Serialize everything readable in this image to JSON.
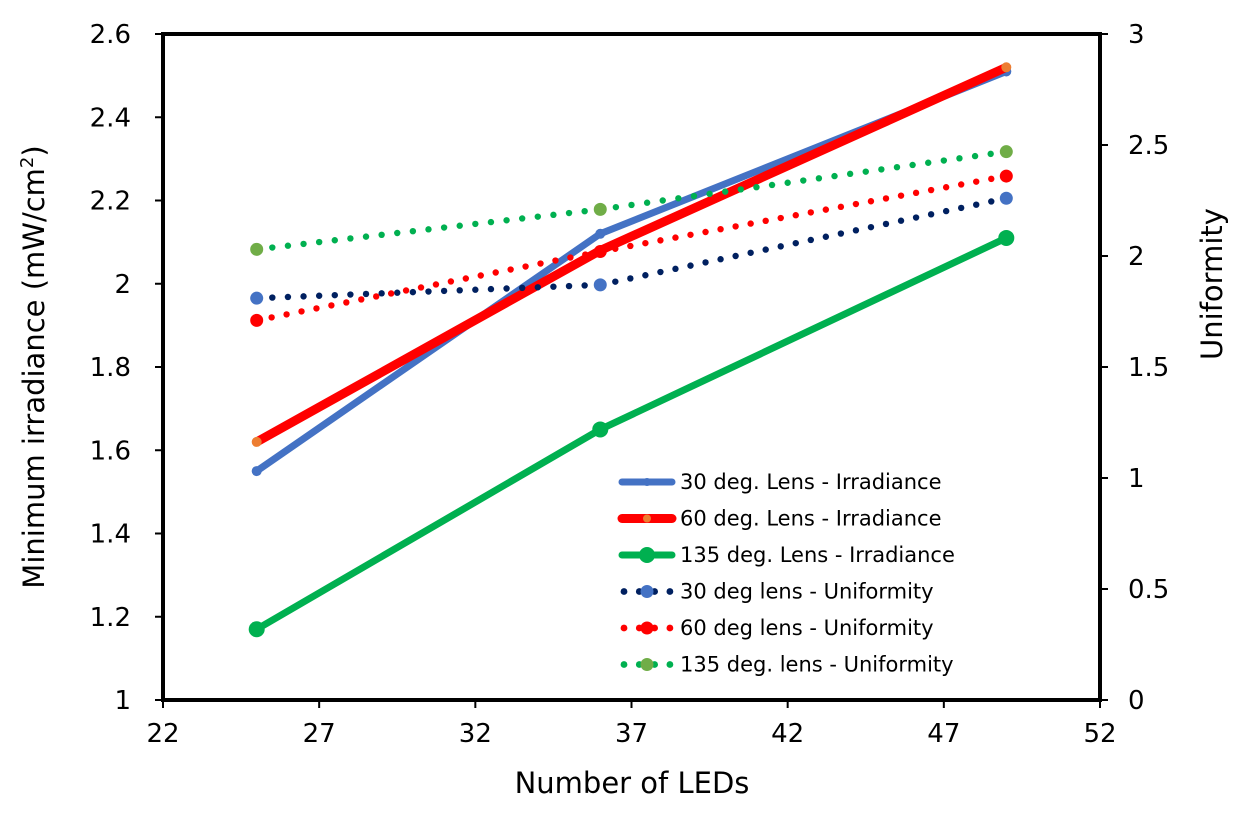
{
  "chart_data": {
    "type": "line",
    "xlabel": "Number of LEDs",
    "ylabel": "Minimum irradiance (mW/cm²)",
    "ylabel_parts": {
      "prefix": "Minimum irradiance (mW/cm",
      "superscript": "2",
      "suffix": ")"
    },
    "y2label": "Uniformity",
    "xlim": [
      22,
      52
    ],
    "ylim": [
      1,
      2.6
    ],
    "y2lim": [
      0,
      3
    ],
    "x_ticks": [
      "22",
      "27",
      "32",
      "37",
      "42",
      "47",
      "52"
    ],
    "y_ticks": [
      "1",
      "1.2",
      "1.4",
      "1.6",
      "1.8",
      "2",
      "2.2",
      "2.4",
      "2.6"
    ],
    "y2_ticks": [
      "0",
      "0.5",
      "1",
      "1.5",
      "2",
      "2.5",
      "3"
    ],
    "x_tick_values": [
      22,
      27,
      32,
      37,
      42,
      47,
      52
    ],
    "y_tick_values": [
      1,
      1.2,
      1.4,
      1.6,
      1.8,
      2,
      2.2,
      2.4,
      2.6
    ],
    "y2_tick_values": [
      0,
      0.5,
      1,
      1.5,
      2,
      2.5,
      3
    ],
    "legend_position": "bottom-right",
    "series": [
      {
        "name": "30 deg. Lens - Irradiance",
        "axis": "left",
        "style": "solid",
        "color": "#4472C4",
        "marker_color": "#4472C4",
        "x": [
          25,
          36,
          49
        ],
        "values": [
          1.55,
          2.12,
          2.51
        ]
      },
      {
        "name": "60 deg. Lens - Irradiance",
        "axis": "left",
        "style": "solid",
        "color": "#FF0000",
        "marker_color": "#ED7D31",
        "x": [
          25,
          36,
          49
        ],
        "values": [
          1.62,
          2.08,
          2.52
        ]
      },
      {
        "name": "135 deg. Lens - Irradiance",
        "axis": "left",
        "style": "solid",
        "color": "#00B050",
        "marker_color": "#00B050",
        "x": [
          25,
          36,
          49
        ],
        "values": [
          1.17,
          1.65,
          2.11
        ]
      },
      {
        "name": "30 deg lens - Uniformity",
        "axis": "right",
        "style": "dotted",
        "color": "#002060",
        "marker_color": "#4472C4",
        "x": [
          25,
          36,
          49
        ],
        "values": [
          1.81,
          1.87,
          2.26
        ]
      },
      {
        "name": "60 deg lens - Uniformity",
        "axis": "right",
        "style": "dotted",
        "color": "#FF0000",
        "marker_color": "#FF0000",
        "x": [
          25,
          36,
          49
        ],
        "values": [
          1.71,
          2.02,
          2.36
        ]
      },
      {
        "name": "135 deg. lens - Uniformity",
        "axis": "right",
        "style": "dotted",
        "color": "#00B050",
        "marker_color": "#70AD47",
        "x": [
          25,
          36,
          49
        ],
        "values": [
          2.03,
          2.21,
          2.47
        ]
      }
    ]
  }
}
